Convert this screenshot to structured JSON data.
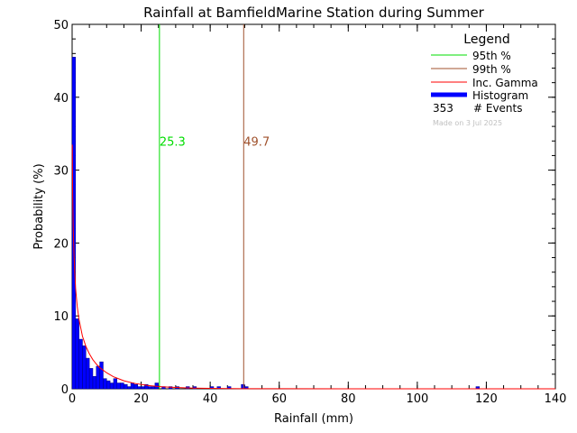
{
  "chart_data": {
    "type": "bar",
    "title": "Rainfall at BamfieldMarine Station during Summer",
    "xlabel": "Rainfall (mm)",
    "ylabel": "Probability (%)",
    "xlim": [
      0,
      140
    ],
    "ylim": [
      0,
      50
    ],
    "x_ticks": [
      "0",
      "20",
      "40",
      "60",
      "80",
      "100",
      "120",
      "140"
    ],
    "y_ticks": [
      "0",
      "10",
      "20",
      "30",
      "40",
      "50"
    ],
    "bin_width": 1,
    "histogram": {
      "name": "Histogram",
      "color": "#0000ff",
      "bins": [
        {
          "x": 0,
          "p": 45.5
        },
        {
          "x": 1,
          "p": 9.6
        },
        {
          "x": 2,
          "p": 6.8
        },
        {
          "x": 3,
          "p": 5.9
        },
        {
          "x": 4,
          "p": 4.2
        },
        {
          "x": 5,
          "p": 2.8
        },
        {
          "x": 6,
          "p": 1.7
        },
        {
          "x": 7,
          "p": 3.1
        },
        {
          "x": 8,
          "p": 3.7
        },
        {
          "x": 9,
          "p": 1.4
        },
        {
          "x": 10,
          "p": 1.1
        },
        {
          "x": 11,
          "p": 0.8
        },
        {
          "x": 12,
          "p": 1.4
        },
        {
          "x": 13,
          "p": 0.8
        },
        {
          "x": 14,
          "p": 0.8
        },
        {
          "x": 15,
          "p": 0.6
        },
        {
          "x": 16,
          "p": 0.3
        },
        {
          "x": 17,
          "p": 0.8
        },
        {
          "x": 18,
          "p": 0.6
        },
        {
          "x": 19,
          "p": 0.3
        },
        {
          "x": 20,
          "p": 0.3
        },
        {
          "x": 21,
          "p": 0.6
        },
        {
          "x": 22,
          "p": 0.3
        },
        {
          "x": 23,
          "p": 0.3
        },
        {
          "x": 24,
          "p": 0.8
        },
        {
          "x": 26,
          "p": 0.3
        },
        {
          "x": 28,
          "p": 0.3
        },
        {
          "x": 30,
          "p": 0.3
        },
        {
          "x": 33,
          "p": 0.3
        },
        {
          "x": 35,
          "p": 0.3
        },
        {
          "x": 40,
          "p": 0.3
        },
        {
          "x": 42,
          "p": 0.3
        },
        {
          "x": 45,
          "p": 0.3
        },
        {
          "x": 49,
          "p": 0.6
        },
        {
          "x": 50,
          "p": 0.3
        },
        {
          "x": 117,
          "p": 0.3
        }
      ]
    },
    "gamma_curve": {
      "name": "Inc. Gamma",
      "color": "#ff0000",
      "points": [
        [
          0.05,
          33.5
        ],
        [
          0.15,
          27.0
        ],
        [
          0.3,
          22.5
        ],
        [
          0.5,
          19.0
        ],
        [
          0.75,
          16.0
        ],
        [
          1,
          13.8
        ],
        [
          1.5,
          11.2
        ],
        [
          2,
          9.5
        ],
        [
          3,
          7.2
        ],
        [
          4,
          5.8
        ],
        [
          5,
          4.8
        ],
        [
          6,
          4.0
        ],
        [
          7,
          3.4
        ],
        [
          8,
          2.9
        ],
        [
          10,
          2.2
        ],
        [
          12,
          1.65
        ],
        [
          15,
          1.1
        ],
        [
          18,
          0.75
        ],
        [
          22,
          0.45
        ],
        [
          26,
          0.28
        ],
        [
          30,
          0.18
        ],
        [
          35,
          0.1
        ],
        [
          40,
          0.06
        ],
        [
          50,
          0.02
        ],
        [
          60,
          0.01
        ],
        [
          80,
          0.0
        ],
        [
          100,
          0.0
        ],
        [
          140,
          0.0
        ]
      ]
    },
    "percentiles": [
      {
        "name": "95th %",
        "x": 25.3,
        "label": "25.3",
        "color": "#00dd00"
      },
      {
        "name": "99th %",
        "x": 49.7,
        "label": "49.7",
        "color": "#a0522d"
      }
    ],
    "legend": {
      "title": "Legend",
      "position": "top-right",
      "events_count": "353",
      "events_label": "# Events",
      "credit": "Made on 3 Jul 2025",
      "credit_color": "#c0c0c0"
    }
  }
}
